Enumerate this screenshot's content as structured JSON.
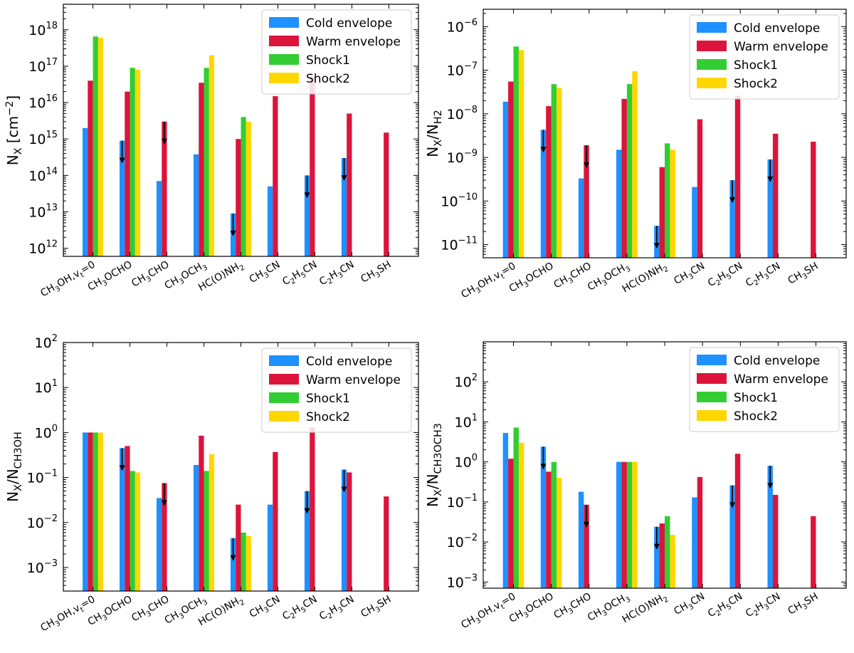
{
  "colors": {
    "cold": "#1e90ff",
    "warm": "#dc143c",
    "shock1": "#32cd32",
    "shock2": "#ffd700"
  },
  "chart_data": [
    {
      "type": "bar",
      "panel": "top-left",
      "ylabel_main": "N",
      "ylabel_sub": "X",
      "ylabel_tail": " [cm",
      "ylabel_sup": "−2",
      "ylabel_end": "]",
      "yscale": "log",
      "ylim": [
        600000000000.0,
        5e+18
      ],
      "yticks": [
        {
          "v": 1000000000000.0,
          "base": "10",
          "exp": "12"
        },
        {
          "v": 10000000000000.0,
          "base": "10",
          "exp": "13"
        },
        {
          "v": 100000000000000.0,
          "base": "10",
          "exp": "14"
        },
        {
          "v": 1000000000000000.0,
          "base": "10",
          "exp": "15"
        },
        {
          "v": 1e+16,
          "base": "10",
          "exp": "16"
        },
        {
          "v": 1e+17,
          "base": "10",
          "exp": "17"
        },
        {
          "v": 1e+18,
          "base": "10",
          "exp": "18"
        }
      ],
      "categories": [
        [
          [
            "CH",
            ""
          ],
          [
            "3",
            "sub"
          ],
          [
            "OH,v",
            ""
          ],
          [
            "t",
            "sub"
          ],
          [
            "=0",
            ""
          ]
        ],
        [
          [
            "CH",
            ""
          ],
          [
            "3",
            "sub"
          ],
          [
            "OCHO",
            ""
          ]
        ],
        [
          [
            "CH",
            ""
          ],
          [
            "3",
            "sub"
          ],
          [
            "CHO",
            ""
          ]
        ],
        [
          [
            "CH",
            ""
          ],
          [
            "3",
            "sub"
          ],
          [
            "OCH",
            ""
          ],
          [
            "3",
            "sub"
          ]
        ],
        [
          [
            "HC(O)NH",
            ""
          ],
          [
            "2",
            "sub"
          ]
        ],
        [
          [
            "CH",
            ""
          ],
          [
            "3",
            "sub"
          ],
          [
            "CN",
            ""
          ]
        ],
        [
          [
            "C",
            ""
          ],
          [
            "2",
            "sub"
          ],
          [
            "H",
            ""
          ],
          [
            "5",
            "sub"
          ],
          [
            "CN",
            ""
          ]
        ],
        [
          [
            "C",
            ""
          ],
          [
            "2",
            "sub"
          ],
          [
            "H",
            ""
          ],
          [
            "3",
            "sub"
          ],
          [
            "CN",
            ""
          ]
        ],
        [
          [
            "CH",
            ""
          ],
          [
            "3",
            "sub"
          ],
          [
            "SH",
            ""
          ]
        ]
      ],
      "series": [
        {
          "name": "Cold envelope",
          "values": [
            2000000000000000.0,
            900000000000000.0,
            70000000000000.0,
            380000000000000.0,
            9000000000000.0,
            50000000000000.0,
            100000000000000.0,
            300000000000000.0,
            null
          ],
          "upper_limit": [
            false,
            true,
            false,
            false,
            true,
            false,
            true,
            true,
            false
          ]
        },
        {
          "name": "Warm envelope",
          "values": [
            4e+16,
            2e+16,
            3000000000000000.0,
            3.5e+16,
            1000000000000000.0,
            1.5e+16,
            5e+16,
            5000000000000000.0,
            1500000000000000.0
          ],
          "upper_limit": [
            false,
            false,
            true,
            false,
            false,
            false,
            false,
            false,
            false
          ]
        },
        {
          "name": "Shock1",
          "values": [
            6.5e+17,
            9e+16,
            null,
            9e+16,
            4000000000000000.0,
            null,
            null,
            null,
            null
          ],
          "upper_limit": [
            false,
            false,
            false,
            false,
            false,
            false,
            false,
            false,
            false
          ]
        },
        {
          "name": "Shock2",
          "values": [
            6e+17,
            8e+16,
            null,
            2e+17,
            3000000000000000.0,
            null,
            null,
            null,
            null
          ],
          "upper_limit": [
            false,
            false,
            false,
            false,
            false,
            false,
            false,
            false,
            false
          ]
        }
      ],
      "legend": "top-right"
    },
    {
      "type": "bar",
      "panel": "top-right",
      "ylabel_main": "N",
      "ylabel_sub": "X",
      "ylabel_tail": "/N",
      "ylabel_sub2": "H",
      "ylabel_sub3": "2",
      "yscale": "log",
      "ylim": [
        5e-12,
        2.5e-06
      ],
      "yticks": [
        {
          "v": 1e-11,
          "base": "10",
          "exp": "−11"
        },
        {
          "v": 1e-10,
          "base": "10",
          "exp": "−10"
        },
        {
          "v": 1e-09,
          "base": "10",
          "exp": "−9"
        },
        {
          "v": 1e-08,
          "base": "10",
          "exp": "−8"
        },
        {
          "v": 1e-07,
          "base": "10",
          "exp": "−7"
        },
        {
          "v": 1e-06,
          "base": "10",
          "exp": "−6"
        }
      ],
      "categories": [
        [
          [
            "CH",
            ""
          ],
          [
            "3",
            "sub"
          ],
          [
            "OH,v",
            ""
          ],
          [
            "t",
            "sub"
          ],
          [
            "=0",
            ""
          ]
        ],
        [
          [
            "CH",
            ""
          ],
          [
            "3",
            "sub"
          ],
          [
            "OCHO",
            ""
          ]
        ],
        [
          [
            "CH",
            ""
          ],
          [
            "3",
            "sub"
          ],
          [
            "CHO",
            ""
          ]
        ],
        [
          [
            "CH",
            ""
          ],
          [
            "3",
            "sub"
          ],
          [
            "OCH",
            ""
          ],
          [
            "3",
            "sub"
          ]
        ],
        [
          [
            "HC(O)NH",
            ""
          ],
          [
            "2",
            "sub"
          ]
        ],
        [
          [
            "CH",
            ""
          ],
          [
            "3",
            "sub"
          ],
          [
            "CN",
            ""
          ]
        ],
        [
          [
            "C",
            ""
          ],
          [
            "2",
            "sub"
          ],
          [
            "H",
            ""
          ],
          [
            "5",
            "sub"
          ],
          [
            "CN",
            ""
          ]
        ],
        [
          [
            "C",
            ""
          ],
          [
            "2",
            "sub"
          ],
          [
            "H",
            ""
          ],
          [
            "3",
            "sub"
          ],
          [
            "CN",
            ""
          ]
        ],
        [
          [
            "CH",
            ""
          ],
          [
            "3",
            "sub"
          ],
          [
            "SH",
            ""
          ]
        ]
      ],
      "series": [
        {
          "name": "Cold envelope",
          "values": [
            1.9e-08,
            4.3e-09,
            3.3e-10,
            1.5e-09,
            2.7e-11,
            2.1e-10,
            3e-10,
            9e-10,
            null
          ],
          "upper_limit": [
            false,
            true,
            false,
            false,
            true,
            false,
            true,
            true,
            false
          ]
        },
        {
          "name": "Warm envelope",
          "values": [
            5.5e-08,
            1.5e-08,
            1.9e-09,
            2.2e-08,
            6e-10,
            7.5e-09,
            2.6e-08,
            3.5e-09,
            2.3e-09
          ],
          "upper_limit": [
            false,
            false,
            true,
            false,
            false,
            false,
            false,
            false,
            false
          ]
        },
        {
          "name": "Shock1",
          "values": [
            3.5e-07,
            4.8e-08,
            null,
            4.8e-08,
            2.1e-09,
            null,
            null,
            null,
            null
          ],
          "upper_limit": [
            false,
            false,
            false,
            false,
            false,
            false,
            false,
            false,
            false
          ]
        },
        {
          "name": "Shock2",
          "values": [
            2.9e-07,
            3.9e-08,
            null,
            9.5e-08,
            1.5e-09,
            null,
            null,
            null,
            null
          ],
          "upper_limit": [
            false,
            false,
            false,
            false,
            false,
            false,
            false,
            false,
            false
          ]
        }
      ],
      "legend": "top-right"
    },
    {
      "type": "bar",
      "panel": "bottom-left",
      "ylabel_main": "N",
      "ylabel_sub": "X",
      "ylabel_tail": "/N",
      "ylabel_sub2": "CH3OH",
      "yscale": "log",
      "ylim": [
        0.0003,
        100
      ],
      "yticks": [
        {
          "v": 0.001,
          "base": "10",
          "exp": "−3"
        },
        {
          "v": 0.01,
          "base": "10",
          "exp": "−2"
        },
        {
          "v": 0.1,
          "base": "10",
          "exp": "−1"
        },
        {
          "v": 1,
          "base": "10",
          "exp": "0"
        },
        {
          "v": 10,
          "base": "10",
          "exp": "1"
        },
        {
          "v": 100,
          "base": "10",
          "exp": "2"
        }
      ],
      "categories": [
        [
          [
            "CH",
            ""
          ],
          [
            "3",
            "sub"
          ],
          [
            "OH,v",
            ""
          ],
          [
            "t",
            "sub"
          ],
          [
            "=0",
            ""
          ]
        ],
        [
          [
            "CH",
            ""
          ],
          [
            "3",
            "sub"
          ],
          [
            "OCHO",
            ""
          ]
        ],
        [
          [
            "CH",
            ""
          ],
          [
            "3",
            "sub"
          ],
          [
            "CHO",
            ""
          ]
        ],
        [
          [
            "CH",
            ""
          ],
          [
            "3",
            "sub"
          ],
          [
            "OCH",
            ""
          ],
          [
            "3",
            "sub"
          ]
        ],
        [
          [
            "HC(O)NH",
            ""
          ],
          [
            "2",
            "sub"
          ]
        ],
        [
          [
            "CH",
            ""
          ],
          [
            "3",
            "sub"
          ],
          [
            "CN",
            ""
          ]
        ],
        [
          [
            "C",
            ""
          ],
          [
            "2",
            "sub"
          ],
          [
            "H",
            ""
          ],
          [
            "5",
            "sub"
          ],
          [
            "CN",
            ""
          ]
        ],
        [
          [
            "C",
            ""
          ],
          [
            "2",
            "sub"
          ],
          [
            "H",
            ""
          ],
          [
            "3",
            "sub"
          ],
          [
            "CN",
            ""
          ]
        ],
        [
          [
            "CH",
            ""
          ],
          [
            "3",
            "sub"
          ],
          [
            "SH",
            ""
          ]
        ]
      ],
      "series": [
        {
          "name": "Cold envelope",
          "values": [
            1.0,
            0.45,
            0.035,
            0.19,
            0.0045,
            0.025,
            0.05,
            0.15,
            null
          ],
          "upper_limit": [
            false,
            true,
            false,
            false,
            true,
            false,
            true,
            true,
            false
          ]
        },
        {
          "name": "Warm envelope",
          "values": [
            1.0,
            0.5,
            0.075,
            0.85,
            0.025,
            0.37,
            1.3,
            0.13,
            0.038
          ],
          "upper_limit": [
            false,
            false,
            true,
            false,
            false,
            false,
            false,
            false,
            false
          ]
        },
        {
          "name": "Shock1",
          "values": [
            1.0,
            0.14,
            null,
            0.14,
            0.006,
            null,
            null,
            null,
            null
          ],
          "upper_limit": [
            false,
            false,
            false,
            false,
            false,
            false,
            false,
            false,
            false
          ]
        },
        {
          "name": "Shock2",
          "values": [
            1.0,
            0.13,
            null,
            0.33,
            0.005,
            null,
            null,
            null,
            null
          ],
          "upper_limit": [
            false,
            false,
            false,
            false,
            false,
            false,
            false,
            false,
            false
          ]
        }
      ],
      "legend": "top-right"
    },
    {
      "type": "bar",
      "panel": "bottom-right",
      "ylabel_main": "N",
      "ylabel_sub": "X",
      "ylabel_tail": "/N",
      "ylabel_sub2": "CH3OCH3",
      "yscale": "log",
      "ylim": [
        0.0007,
        1000
      ],
      "yticks": [
        {
          "v": 0.001,
          "base": "10",
          "exp": "−3"
        },
        {
          "v": 0.01,
          "base": "10",
          "exp": "−2"
        },
        {
          "v": 0.1,
          "base": "10",
          "exp": "−1"
        },
        {
          "v": 1,
          "base": "10",
          "exp": "0"
        },
        {
          "v": 10,
          "base": "10",
          "exp": "1"
        },
        {
          "v": 100,
          "base": "10",
          "exp": "2"
        }
      ],
      "categories": [
        [
          [
            "CH",
            ""
          ],
          [
            "3",
            "sub"
          ],
          [
            "OH,v",
            ""
          ],
          [
            "t",
            "sub"
          ],
          [
            "=0",
            ""
          ]
        ],
        [
          [
            "CH",
            ""
          ],
          [
            "3",
            "sub"
          ],
          [
            "OCHO",
            ""
          ]
        ],
        [
          [
            "CH",
            ""
          ],
          [
            "3",
            "sub"
          ],
          [
            "CHO",
            ""
          ]
        ],
        [
          [
            "CH",
            ""
          ],
          [
            "3",
            "sub"
          ],
          [
            "OCH",
            ""
          ],
          [
            "3",
            "sub"
          ]
        ],
        [
          [
            "HC(O)NH",
            ""
          ],
          [
            "2",
            "sub"
          ]
        ],
        [
          [
            "CH",
            ""
          ],
          [
            "3",
            "sub"
          ],
          [
            "CN",
            ""
          ]
        ],
        [
          [
            "C",
            ""
          ],
          [
            "2",
            "sub"
          ],
          [
            "H",
            ""
          ],
          [
            "5",
            "sub"
          ],
          [
            "CN",
            ""
          ]
        ],
        [
          [
            "C",
            ""
          ],
          [
            "2",
            "sub"
          ],
          [
            "H",
            ""
          ],
          [
            "3",
            "sub"
          ],
          [
            "CN",
            ""
          ]
        ],
        [
          [
            "CH",
            ""
          ],
          [
            "3",
            "sub"
          ],
          [
            "SH",
            ""
          ]
        ]
      ],
      "series": [
        {
          "name": "Cold envelope",
          "values": [
            5.3,
            2.4,
            0.18,
            1.0,
            0.024,
            0.13,
            0.26,
            0.8,
            null
          ],
          "upper_limit": [
            false,
            true,
            false,
            false,
            true,
            false,
            true,
            true,
            false
          ]
        },
        {
          "name": "Warm envelope",
          "values": [
            1.2,
            0.57,
            0.085,
            1.0,
            0.029,
            0.42,
            1.6,
            0.15,
            0.044
          ],
          "upper_limit": [
            false,
            false,
            true,
            false,
            false,
            false,
            false,
            false,
            false
          ]
        },
        {
          "name": "Shock1",
          "values": [
            7.2,
            1.0,
            null,
            1.0,
            0.044,
            null,
            null,
            null,
            null
          ],
          "upper_limit": [
            false,
            false,
            false,
            false,
            false,
            false,
            false,
            false,
            false
          ]
        },
        {
          "name": "Shock2",
          "values": [
            3.0,
            0.4,
            null,
            1.0,
            0.015,
            null,
            null,
            null,
            null
          ],
          "upper_limit": [
            false,
            false,
            false,
            false,
            false,
            false,
            false,
            false,
            false
          ]
        }
      ],
      "legend": "top-right"
    }
  ]
}
